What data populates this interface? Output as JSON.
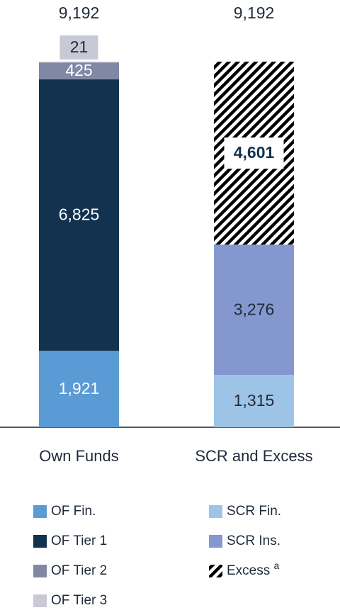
{
  "chart_data": {
    "type": "stacked_bar",
    "categories": [
      "Own Funds",
      "SCR and Excess"
    ],
    "totals": [
      9192,
      9192
    ],
    "totals_labels": [
      "9,192",
      "9,192"
    ],
    "series": [
      {
        "name": "OF Fin.",
        "color": "#5b9bd5",
        "values": [
          1921,
          null
        ],
        "value_labels": [
          "1,921",
          null
        ]
      },
      {
        "name": "OF Tier 1",
        "color": "#13324f",
        "values": [
          6825,
          null
        ],
        "value_labels": [
          "6,825",
          null
        ]
      },
      {
        "name": "OF Tier 2",
        "color": "#8088a3",
        "values": [
          425,
          null
        ],
        "value_labels": [
          "425",
          null
        ]
      },
      {
        "name": "OF Tier 3",
        "color": "#c9c9d6",
        "values": [
          21,
          null
        ],
        "value_labels": [
          "21",
          null
        ]
      },
      {
        "name": "SCR Fin.",
        "color": "#9dc3e6",
        "values": [
          null,
          1315
        ],
        "value_labels": [
          null,
          "1,315"
        ]
      },
      {
        "name": "SCR Ins.",
        "color": "#8497cf",
        "values": [
          null,
          3276
        ],
        "value_labels": [
          null,
          "3,276"
        ]
      },
      {
        "name": "Excess",
        "color": "#000000",
        "pattern": "hatch",
        "values": [
          null,
          4601
        ],
        "value_labels": [
          null,
          "4,601"
        ],
        "note": "a"
      }
    ]
  }
}
